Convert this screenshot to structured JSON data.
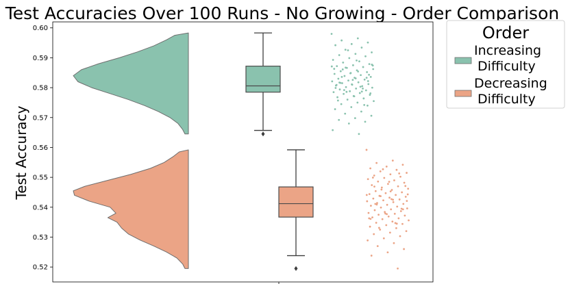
{
  "chart_data": {
    "type": "violin",
    "title": "Test Accuracies Over 100 Runs - No Growing - Order Comparison",
    "xlabel": "",
    "ylabel": "Test Accuracy",
    "ylim": [
      0.515,
      0.602
    ],
    "yticks": [
      0.52,
      0.53,
      0.54,
      0.55,
      0.56,
      0.57,
      0.58,
      0.59,
      0.6
    ],
    "ytick_labels": [
      "0.52",
      "0.53",
      "0.54",
      "0.55",
      "0.56",
      "0.57",
      "0.58",
      "0.59",
      "0.60"
    ],
    "grid": false,
    "legend": {
      "title": "Order",
      "placement": "outside-top-right",
      "entries": [
        {
          "lines": [
            "Increasing",
            "Difficulty"
          ],
          "color": "#8ac2ae"
        },
        {
          "lines": [
            "Decreasing",
            "Difficulty"
          ],
          "color": "#eba486"
        }
      ]
    },
    "series": [
      {
        "key": "increasing",
        "color": "#8ac2ae",
        "min": 0.5645,
        "max": 0.5983,
        "box": {
          "q1": 0.5785,
          "median": 0.5806,
          "q3": 0.5872,
          "whisker_low": 0.5657,
          "whisker_high": 0.5983
        },
        "outliers": [
          0.5645
        ],
        "density": [
          [
            0.5645,
            0.03
          ],
          [
            0.566,
            0.05
          ],
          [
            0.568,
            0.09
          ],
          [
            0.57,
            0.16
          ],
          [
            0.572,
            0.26
          ],
          [
            0.574,
            0.38
          ],
          [
            0.576,
            0.52
          ],
          [
            0.578,
            0.68
          ],
          [
            0.58,
            0.84
          ],
          [
            0.582,
            0.96
          ],
          [
            0.584,
            1.0
          ],
          [
            0.586,
            0.93
          ],
          [
            0.588,
            0.78
          ],
          [
            0.59,
            0.6
          ],
          [
            0.592,
            0.44
          ],
          [
            0.594,
            0.3
          ],
          [
            0.596,
            0.19
          ],
          [
            0.5975,
            0.12
          ],
          [
            0.5983,
            0.0
          ]
        ],
        "points": [
          0.598,
          0.5965,
          0.5958,
          0.5951,
          0.5946,
          0.5942,
          0.5934,
          0.5927,
          0.5918,
          0.5913,
          0.5909,
          0.5905,
          0.5899,
          0.5893,
          0.5888,
          0.5884,
          0.5879,
          0.5875,
          0.5872,
          0.5869,
          0.5866,
          0.5862,
          0.5858,
          0.5855,
          0.5852,
          0.5849,
          0.5846,
          0.5842,
          0.5839,
          0.5836,
          0.5833,
          0.583,
          0.5827,
          0.5824,
          0.5821,
          0.5818,
          0.5815,
          0.5812,
          0.581,
          0.5807,
          0.5805,
          0.5802,
          0.58,
          0.5797,
          0.5794,
          0.5791,
          0.5788,
          0.5785,
          0.5782,
          0.5779,
          0.5776,
          0.5772,
          0.5768,
          0.5764,
          0.576,
          0.5755,
          0.575,
          0.5745,
          0.574,
          0.5735,
          0.5728,
          0.572,
          0.5713,
          0.5706,
          0.5698,
          0.5692,
          0.5686,
          0.568,
          0.5658,
          0.5645,
          0.5861,
          0.5843,
          0.5826,
          0.5809,
          0.5797,
          0.5786,
          0.5874,
          0.5891,
          0.5816,
          0.5833,
          0.5848,
          0.5863,
          0.5803,
          0.5792,
          0.5781,
          0.5771,
          0.5757,
          0.5742,
          0.5925,
          0.5871,
          0.5854,
          0.5836,
          0.5822,
          0.5811,
          0.5799,
          0.5787,
          0.5867,
          0.5877,
          0.5831,
          0.5817
        ]
      },
      {
        "key": "decreasing",
        "color": "#eba486",
        "min": 0.5195,
        "max": 0.5592,
        "box": {
          "q1": 0.5367,
          "median": 0.5412,
          "q3": 0.5468,
          "whisker_low": 0.5238,
          "whisker_high": 0.5592
        },
        "outliers": [
          0.5195
        ],
        "density": [
          [
            0.5195,
            0.03
          ],
          [
            0.521,
            0.05
          ],
          [
            0.523,
            0.1
          ],
          [
            0.525,
            0.19
          ],
          [
            0.527,
            0.3
          ],
          [
            0.529,
            0.42
          ],
          [
            0.531,
            0.52
          ],
          [
            0.533,
            0.58
          ],
          [
            0.535,
            0.62
          ],
          [
            0.5365,
            0.7
          ],
          [
            0.538,
            0.63
          ],
          [
            0.54,
            0.68
          ],
          [
            0.542,
            0.86
          ],
          [
            0.544,
            0.99
          ],
          [
            0.5455,
            1.0
          ],
          [
            0.547,
            0.9
          ],
          [
            0.549,
            0.7
          ],
          [
            0.551,
            0.5
          ],
          [
            0.553,
            0.33
          ],
          [
            0.555,
            0.21
          ],
          [
            0.557,
            0.13
          ],
          [
            0.5585,
            0.08
          ],
          [
            0.5592,
            0.0
          ]
        ],
        "points": [
          0.5592,
          0.5556,
          0.5548,
          0.5542,
          0.5536,
          0.553,
          0.5525,
          0.552,
          0.5515,
          0.551,
          0.5506,
          0.5502,
          0.5498,
          0.5494,
          0.549,
          0.5486,
          0.5482,
          0.5478,
          0.5474,
          0.547,
          0.5466,
          0.5462,
          0.5458,
          0.5454,
          0.545,
          0.5447,
          0.5444,
          0.5441,
          0.5438,
          0.5435,
          0.5432,
          0.5429,
          0.5426,
          0.5423,
          0.542,
          0.5417,
          0.5414,
          0.5411,
          0.5408,
          0.5405,
          0.5402,
          0.5399,
          0.5396,
          0.5393,
          0.539,
          0.5387,
          0.5384,
          0.5381,
          0.5378,
          0.5375,
          0.5372,
          0.5369,
          0.5366,
          0.5363,
          0.536,
          0.5356,
          0.5352,
          0.5348,
          0.5344,
          0.534,
          0.5335,
          0.533,
          0.5325,
          0.532,
          0.5315,
          0.531,
          0.5303,
          0.5296,
          0.5289,
          0.528,
          0.527,
          0.526,
          0.5249,
          0.5238,
          0.5195,
          0.5459,
          0.5443,
          0.5427,
          0.5411,
          0.5395,
          0.5379,
          0.5363,
          0.5347,
          0.5331,
          0.5471,
          0.5485,
          0.5499,
          0.5513,
          0.5527,
          0.5441,
          0.5425,
          0.5409,
          0.5393,
          0.5377,
          0.5361,
          0.5345,
          0.5437,
          0.5421,
          0.5453,
          0.5469
        ]
      }
    ]
  }
}
